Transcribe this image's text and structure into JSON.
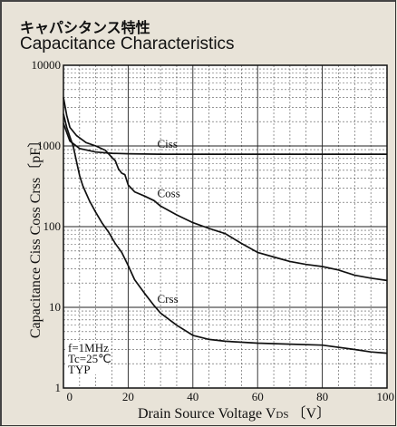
{
  "header": {
    "title_jp": "キャパシタンス特性",
    "title_en": "Capacitance Characteristics"
  },
  "chart_data": {
    "type": "line",
    "x_scale": "linear",
    "y_scale": "log",
    "xlim": [
      0,
      100
    ],
    "ylim": [
      1,
      10000
    ],
    "x_ticks": [
      0,
      20,
      40,
      60,
      80,
      100
    ],
    "x_tick_labels": [
      "0",
      "20",
      "40",
      "60",
      "80",
      "100"
    ],
    "y_ticks": [
      1,
      10,
      100,
      1000,
      10000
    ],
    "y_tick_labels": [
      "1",
      "10",
      "100",
      "1000",
      "10000"
    ],
    "xlabel": "Drain Source Voltage V",
    "xlabel_sub": "DS",
    "xlabel_unit": "〔V〕",
    "ylabel": "Capacitance  Ciss Coss Crss〔pF〕",
    "grid": true,
    "conditions": [
      "f=1MHz",
      "Tc=25℃",
      "TYP"
    ],
    "series": [
      {
        "name": "Ciss",
        "label_x": 29,
        "points": [
          [
            0,
            1900
          ],
          [
            2,
            1150
          ],
          [
            5,
            930
          ],
          [
            10,
            840
          ],
          [
            15,
            810
          ],
          [
            20,
            800
          ],
          [
            30,
            790
          ],
          [
            40,
            790
          ],
          [
            50,
            790
          ],
          [
            60,
            790
          ],
          [
            70,
            790
          ],
          [
            80,
            790
          ],
          [
            90,
            790
          ],
          [
            100,
            790
          ]
        ]
      },
      {
        "name": "Coss",
        "label_x": 29,
        "points": [
          [
            0,
            4000
          ],
          [
            1,
            2400
          ],
          [
            2,
            1700
          ],
          [
            4,
            1350
          ],
          [
            7,
            1100
          ],
          [
            10,
            1000
          ],
          [
            13,
            880
          ],
          [
            15,
            720
          ],
          [
            16,
            660
          ],
          [
            17,
            520
          ],
          [
            18,
            460
          ],
          [
            19,
            440
          ],
          [
            20,
            330
          ],
          [
            22,
            270
          ],
          [
            25,
            240
          ],
          [
            28,
            210
          ],
          [
            30,
            180
          ],
          [
            35,
            140
          ],
          [
            40,
            112
          ],
          [
            45,
            95
          ],
          [
            50,
            82
          ],
          [
            55,
            62
          ],
          [
            60,
            48
          ],
          [
            65,
            42
          ],
          [
            70,
            37
          ],
          [
            75,
            34
          ],
          [
            80,
            32
          ],
          [
            85,
            29
          ],
          [
            90,
            25
          ],
          [
            95,
            23
          ],
          [
            100,
            21.5
          ]
        ]
      },
      {
        "name": "Crss",
        "label_x": 29,
        "points": [
          [
            0,
            2500
          ],
          [
            1,
            1700
          ],
          [
            2,
            1300
          ],
          [
            3,
            1000
          ],
          [
            4,
            650
          ],
          [
            5,
            430
          ],
          [
            6,
            320
          ],
          [
            8,
            210
          ],
          [
            10,
            150
          ],
          [
            12,
            110
          ],
          [
            14,
            85
          ],
          [
            16,
            62
          ],
          [
            18,
            48
          ],
          [
            20,
            33
          ],
          [
            22,
            22
          ],
          [
            25,
            15
          ],
          [
            28,
            10.5
          ],
          [
            30,
            8.5
          ],
          [
            35,
            6.0
          ],
          [
            40,
            4.5
          ],
          [
            45,
            4.0
          ],
          [
            50,
            3.8
          ],
          [
            60,
            3.6
          ],
          [
            70,
            3.5
          ],
          [
            80,
            3.4
          ],
          [
            90,
            3.0
          ],
          [
            95,
            2.8
          ],
          [
            100,
            2.7
          ]
        ]
      }
    ]
  }
}
